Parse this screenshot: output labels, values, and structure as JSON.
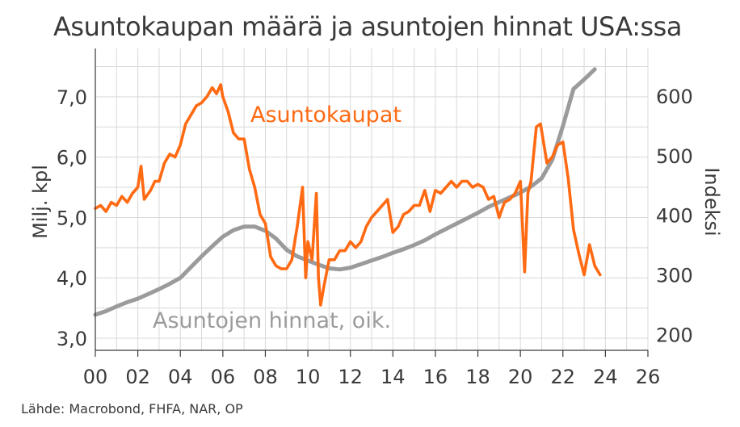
{
  "title": "Asuntokaupan määrä ja asuntojen hinnat USA:ssa",
  "source": "Lähde: Macrobond, FHFA, NAR, OP",
  "chart_data": {
    "type": "line",
    "xlabel": "",
    "xlim": [
      2000,
      2026
    ],
    "xticks": [
      "00",
      "02",
      "04",
      "06",
      "08",
      "10",
      "12",
      "14",
      "16",
      "18",
      "20",
      "22",
      "24",
      "26"
    ],
    "y_left": {
      "label": "Milj. kpl",
      "lim": [
        2.8,
        7.8
      ],
      "ticks": [
        "3,0",
        "4,0",
        "5,0",
        "6,0",
        "7,0"
      ],
      "tick_values": [
        3,
        4,
        5,
        6,
        7
      ]
    },
    "y_right": {
      "label": "Indeksi",
      "lim": [
        173.3,
        680
      ],
      "ticks": [
        "200",
        "300",
        "400",
        "500",
        "600"
      ],
      "tick_values": [
        200,
        300,
        400,
        500,
        600
      ]
    },
    "grid": true,
    "colors": {
      "sales": "#ff6a13",
      "prices": "#9b9b9b",
      "grid": "#d9d9d9",
      "text": "#3a3a3a"
    },
    "series": [
      {
        "name": "Asuntokaupat",
        "axis": "left",
        "label_color": "#ff6a13",
        "x": [
          2000.0,
          2000.25,
          2000.5,
          2000.75,
          2001.0,
          2001.25,
          2001.5,
          2001.75,
          2002.0,
          2002.15,
          2002.3,
          2002.6,
          2002.8,
          2003.0,
          2003.25,
          2003.5,
          2003.75,
          2004.0,
          2004.25,
          2004.5,
          2004.75,
          2005.0,
          2005.25,
          2005.5,
          2005.7,
          2005.9,
          2006.0,
          2006.25,
          2006.5,
          2006.75,
          2007.0,
          2007.25,
          2007.5,
          2007.75,
          2008.0,
          2008.25,
          2008.5,
          2008.75,
          2009.0,
          2009.25,
          2009.5,
          2009.75,
          2009.9,
          2010.0,
          2010.2,
          2010.4,
          2010.5,
          2010.6,
          2010.75,
          2011.0,
          2011.25,
          2011.5,
          2011.75,
          2012.0,
          2012.25,
          2012.5,
          2012.75,
          2013.0,
          2013.25,
          2013.5,
          2013.75,
          2014.0,
          2014.25,
          2014.5,
          2014.75,
          2015.0,
          2015.25,
          2015.5,
          2015.75,
          2016.0,
          2016.25,
          2016.5,
          2016.75,
          2017.0,
          2017.25,
          2017.5,
          2017.75,
          2018.0,
          2018.25,
          2018.5,
          2018.75,
          2019.0,
          2019.25,
          2019.5,
          2019.75,
          2020.0,
          2020.2,
          2020.35,
          2020.5,
          2020.75,
          2020.95,
          2021.25,
          2021.5,
          2021.75,
          2022.0,
          2022.25,
          2022.5,
          2022.75,
          2023.0,
          2023.25,
          2023.5,
          2023.75
        ],
        "values": [
          5.15,
          5.2,
          5.1,
          5.25,
          5.2,
          5.35,
          5.25,
          5.4,
          5.5,
          5.85,
          5.3,
          5.45,
          5.6,
          5.6,
          5.9,
          6.05,
          6.0,
          6.2,
          6.55,
          6.7,
          6.85,
          6.9,
          7.0,
          7.15,
          7.05,
          7.2,
          7.0,
          6.75,
          6.4,
          6.3,
          6.3,
          5.8,
          5.5,
          5.05,
          4.9,
          4.35,
          4.2,
          4.15,
          4.15,
          4.3,
          4.85,
          5.5,
          4.0,
          4.6,
          4.3,
          5.4,
          4.0,
          3.55,
          3.85,
          4.3,
          4.3,
          4.45,
          4.45,
          4.6,
          4.5,
          4.6,
          4.85,
          5.0,
          5.1,
          5.2,
          5.3,
          4.75,
          4.85,
          5.05,
          5.1,
          5.2,
          5.2,
          5.45,
          5.1,
          5.45,
          5.4,
          5.5,
          5.6,
          5.5,
          5.6,
          5.6,
          5.5,
          5.55,
          5.5,
          5.3,
          5.35,
          5.0,
          5.25,
          5.3,
          5.4,
          5.6,
          4.1,
          5.4,
          5.6,
          6.5,
          6.55,
          5.9,
          6.0,
          6.2,
          6.25,
          5.65,
          4.8,
          4.4,
          4.05,
          4.55,
          4.2,
          4.05
        ]
      },
      {
        "name": "Asuntojen hinnat, oik.",
        "axis": "right",
        "label_color": "#9b9b9b",
        "x": [
          2000.0,
          2000.5,
          2001.0,
          2001.5,
          2002.0,
          2002.5,
          2003.0,
          2003.5,
          2004.0,
          2004.5,
          2005.0,
          2005.5,
          2006.0,
          2006.5,
          2007.0,
          2007.5,
          2008.0,
          2008.5,
          2009.0,
          2009.5,
          2010.0,
          2010.5,
          2011.0,
          2011.5,
          2012.0,
          2012.5,
          2013.0,
          2013.5,
          2014.0,
          2014.5,
          2015.0,
          2015.5,
          2016.0,
          2016.5,
          2017.0,
          2017.5,
          2018.0,
          2018.5,
          2019.0,
          2019.5,
          2020.0,
          2020.5,
          2021.0,
          2021.5,
          2022.0,
          2022.5,
          2023.0,
          2023.5
        ],
        "values": [
          233,
          239,
          247,
          254,
          260,
          268,
          276,
          285,
          295,
          313,
          331,
          348,
          364,
          375,
          381,
          381,
          374,
          361,
          342,
          331,
          324,
          317,
          311,
          309,
          312,
          318,
          324,
          330,
          337,
          343,
          350,
          358,
          368,
          377,
          386,
          395,
          404,
          414,
          422,
          430,
          438,
          448,
          462,
          493,
          550,
          612,
          628,
          645
        ]
      }
    ]
  }
}
